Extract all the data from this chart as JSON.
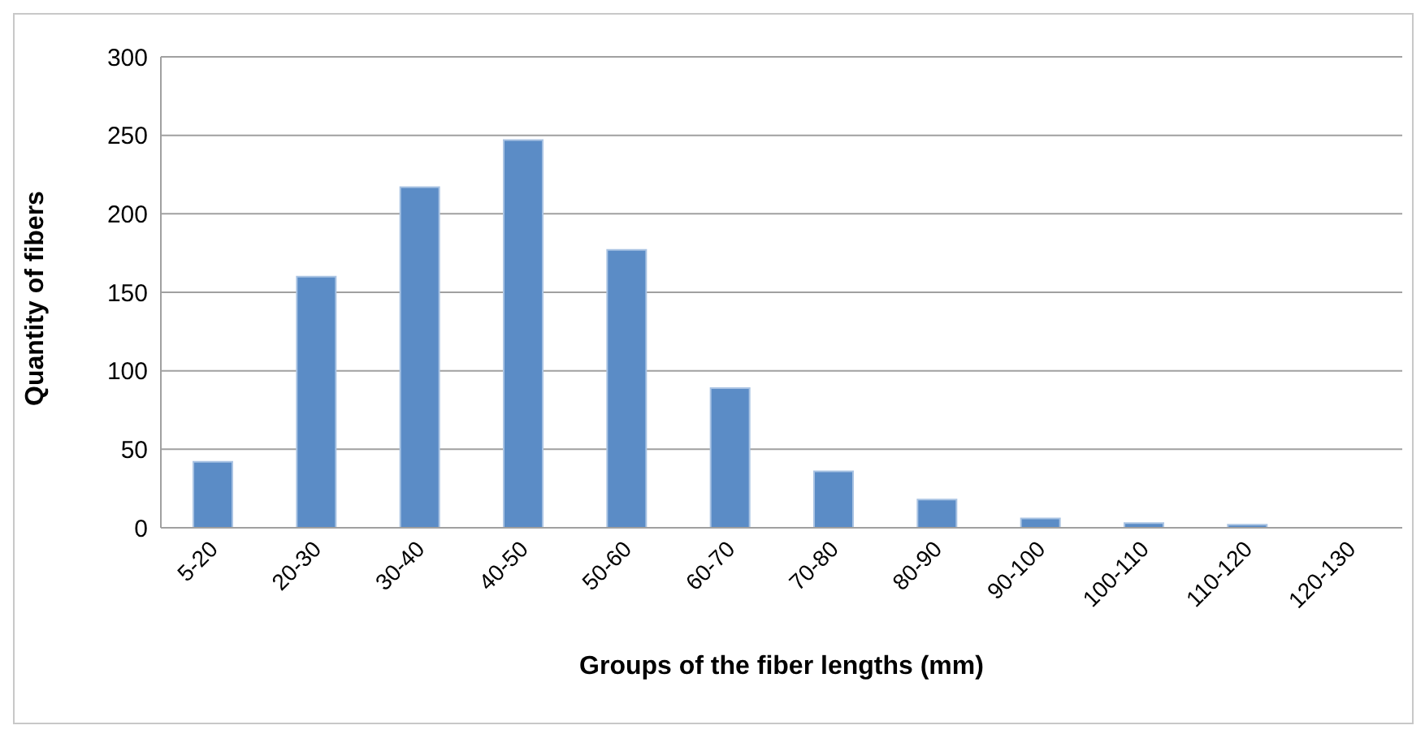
{
  "chart_data": {
    "type": "bar",
    "xlabel": "Groups of the fiber lengths (mm)",
    "ylabel": "Quantity of fibers",
    "categories": [
      "5-20",
      "20-30",
      "30-40",
      "40-50",
      "50-60",
      "60-70",
      "70-80",
      "80-90",
      "90-100",
      "100-110",
      "110-120",
      "120-130"
    ],
    "values": [
      42,
      160,
      217,
      247,
      177,
      89,
      36,
      18,
      6,
      3,
      2,
      0
    ],
    "color": "#5b8cc6",
    "ylim": [
      0,
      300
    ],
    "yticks": [
      0,
      50,
      100,
      150,
      200,
      250,
      300
    ],
    "grid": "y",
    "legend": false
  }
}
